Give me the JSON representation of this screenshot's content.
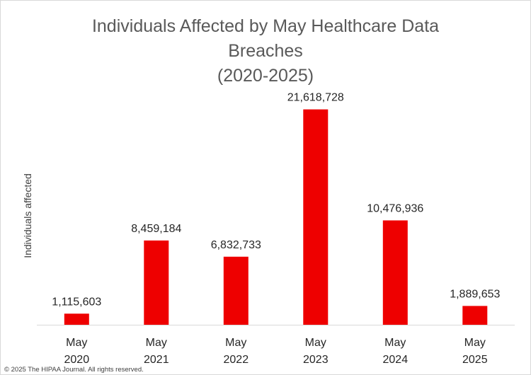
{
  "chart_data": {
    "type": "bar",
    "title_lines": [
      "Individuals Affected by May Healthcare Data",
      "Breaches",
      "(2020-2025)"
    ],
    "ylabel": "Individuals affected",
    "xlabel": "",
    "categories": [
      [
        "May",
        "2020"
      ],
      [
        "May",
        "2021"
      ],
      [
        "May",
        "2022"
      ],
      [
        "May",
        "2023"
      ],
      [
        "May",
        "2024"
      ],
      [
        "May",
        "2025"
      ]
    ],
    "values": [
      1115603,
      8459184,
      6832733,
      21618728,
      10476936,
      1889653
    ],
    "data_labels": [
      "1,115,603",
      "8,459,184",
      "6,832,733",
      "21,618,728",
      "10,476,936",
      "1,889,653"
    ],
    "ylim": [
      0,
      25000000
    ],
    "grid": false,
    "legend": "none",
    "bar_color": "#ee0000",
    "axis_color": "#d9d9d9"
  },
  "copyright": "© 2025 The HIPAA Journal. All rights reserved."
}
